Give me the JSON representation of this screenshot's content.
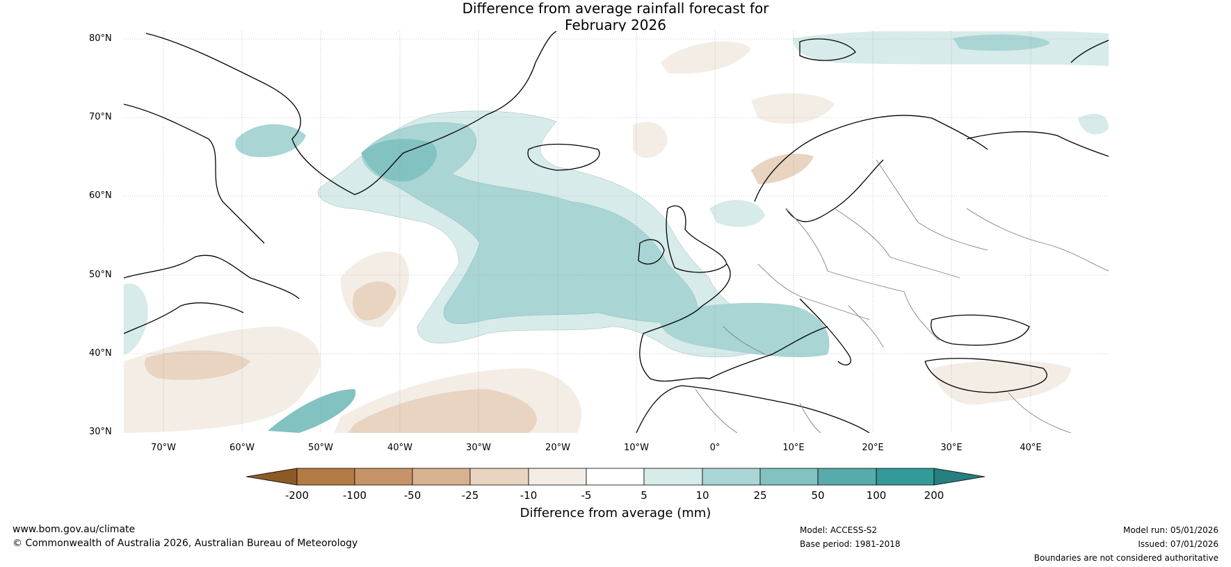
{
  "title": {
    "line1": "Difference from average rainfall forecast for",
    "line2": "February 2026"
  },
  "map": {
    "lat_labels": [
      "80°N",
      "70°N",
      "60°N",
      "50°N",
      "40°N",
      "30°N"
    ],
    "lon_labels": [
      "70°W",
      "60°W",
      "50°W",
      "40°W",
      "30°W",
      "20°W",
      "10°W",
      "0°",
      "10°E",
      "20°E",
      "30°E",
      "40°E"
    ],
    "wet_color": "#9fcfcd",
    "dry_color": "#e6d2bf",
    "coast_color": "#000000",
    "border_color": "#808080"
  },
  "colorbar": {
    "title": "Difference from average (mm)",
    "ticks": [
      "-200",
      "-100",
      "-50",
      "-25",
      "-10",
      "-5",
      "5",
      "10",
      "25",
      "50",
      "100",
      "200"
    ],
    "colors": [
      "#8c5a27",
      "#b47b45",
      "#c69468",
      "#d7b290",
      "#e8d4c1",
      "#f4ede6",
      "#ffffff",
      "#d6ebea",
      "#a9d5d4",
      "#82c2c0",
      "#57acab",
      "#349a99",
      "#25807f"
    ]
  },
  "footer": {
    "website": "www.bom.gov.au/climate",
    "copyright": "© Commonwealth of Australia 2026, Australian Bureau of Meteorology",
    "model": "Model: ACCESS-S2",
    "base_period": "Base period: 1981-2018",
    "model_run": "Model run: 05/01/2026",
    "issued": "Issued: 07/01/2026",
    "disclaimer": "Boundaries are not considered authoritative"
  }
}
